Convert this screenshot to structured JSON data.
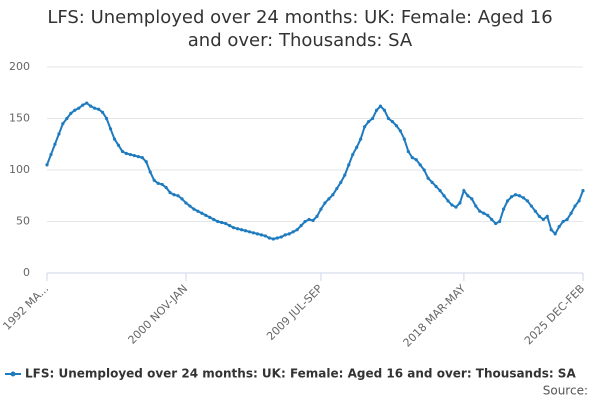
{
  "chart_data": {
    "type": "line",
    "title": "LFS: Unemployed over 24 months: UK: Female: Aged 16 and over: Thousands: SA",
    "source": "Source:",
    "categories": [
      "1992 MA...",
      null,
      null,
      null,
      null,
      null,
      null,
      null,
      null,
      null,
      null,
      null,
      null,
      null,
      null,
      null,
      null,
      null,
      null,
      null,
      null,
      null,
      null,
      null,
      null,
      null,
      null,
      null,
      null,
      null,
      null,
      null,
      null,
      null,
      null,
      "2000 NOV-JAN",
      null,
      null,
      null,
      null,
      null,
      null,
      null,
      null,
      null,
      null,
      null,
      null,
      null,
      null,
      null,
      null,
      null,
      null,
      null,
      null,
      null,
      null,
      null,
      null,
      null,
      null,
      null,
      null,
      null,
      null,
      null,
      null,
      null,
      "2009 JUL-SEP",
      null,
      null,
      null,
      null,
      null,
      null,
      null,
      null,
      null,
      null,
      null,
      null,
      null,
      null,
      null,
      null,
      null,
      null,
      null,
      null,
      null,
      null,
      null,
      null,
      null,
      null,
      null,
      null,
      null,
      null,
      null,
      null,
      null,
      null,
      null,
      "2018 MAR-MAY",
      null,
      null,
      null,
      null,
      null,
      null,
      null,
      null,
      null,
      null,
      null,
      null,
      null,
      null,
      null,
      null,
      null,
      null,
      null,
      null,
      null,
      null,
      null,
      null,
      null,
      null,
      null,
      null,
      null,
      "2025 DEC-FEB"
    ],
    "series": [
      {
        "name": "LFS: Unemployed over 24 months: UK: Female: Aged 16 and over: Thousands: SA",
        "color": "#1f7bbf",
        "values": [
          105,
          115,
          125,
          135,
          145,
          150,
          155,
          158,
          160,
          163,
          165,
          162,
          160,
          159,
          156,
          150,
          140,
          130,
          124,
          118,
          116,
          115,
          114,
          113,
          112,
          108,
          98,
          90,
          87,
          86,
          83,
          78,
          76,
          75,
          72,
          68,
          65,
          62,
          60,
          58,
          56,
          54,
          52,
          50,
          49,
          48,
          46,
          44,
          43,
          42,
          41,
          40,
          39,
          38,
          37,
          36,
          34,
          33,
          34,
          35,
          37,
          38,
          40,
          42,
          46,
          50,
          52,
          51,
          55,
          62,
          68,
          72,
          76,
          82,
          88,
          95,
          105,
          115,
          122,
          130,
          142,
          147,
          150,
          158,
          162,
          158,
          150,
          147,
          143,
          138,
          130,
          118,
          112,
          110,
          105,
          100,
          92,
          88,
          84,
          80,
          75,
          70,
          66,
          64,
          68,
          80,
          75,
          72,
          65,
          60,
          58,
          56,
          52,
          48,
          50,
          62,
          70,
          74,
          76,
          75,
          73,
          70,
          65,
          60,
          55,
          52,
          55,
          42,
          38,
          45,
          50,
          52,
          58,
          65,
          70,
          80
        ]
      }
    ],
    "ylim": [
      0,
      200
    ],
    "yticks": [
      0,
      50,
      100,
      150,
      200
    ],
    "grid": true
  }
}
